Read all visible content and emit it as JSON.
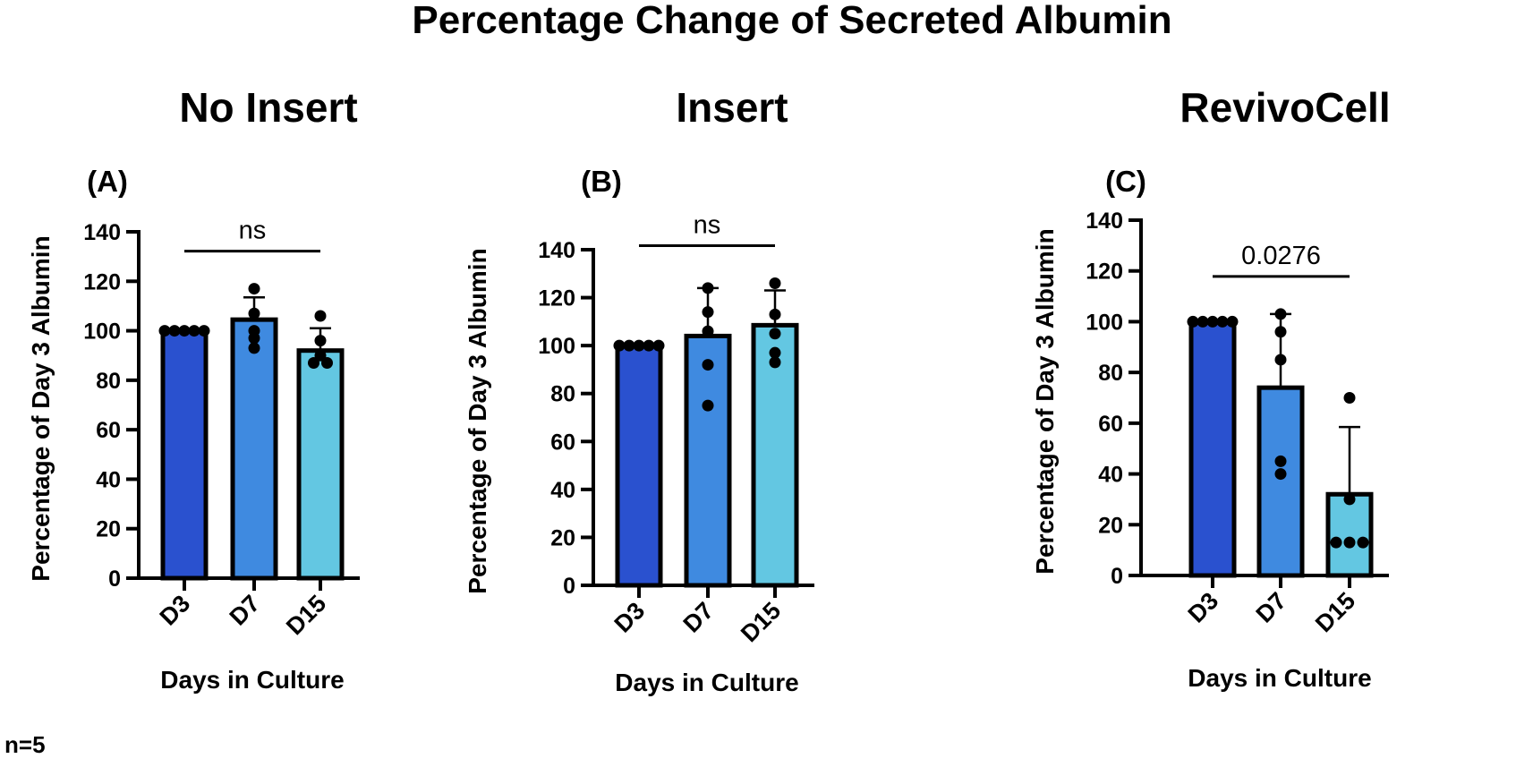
{
  "figure": {
    "title": "Percentage Change of Secreted Albumin",
    "footnote": "n=5"
  },
  "colors": {
    "D3": "#2a51cf",
    "D7": "#3f8ae0",
    "D15": "#63c7e2",
    "outline": "#000000"
  },
  "chart_data": [
    {
      "type": "bar",
      "panel_title": "No Insert",
      "panel_letter": "(A)",
      "categories": [
        "D3",
        "D7",
        "D15"
      ],
      "values": [
        100,
        104.5,
        92
      ],
      "error_upper": [
        100,
        113.5,
        101
      ],
      "points": [
        [
          100,
          100,
          100,
          100,
          100
        ],
        [
          117,
          107,
          100,
          97,
          93
        ],
        [
          106,
          96,
          90,
          87,
          87
        ]
      ],
      "ylabel": "Percentage of Day 3 Albumin",
      "xlabel": "Days in Culture",
      "ylim": [
        0,
        140
      ],
      "yticks": [
        0,
        20,
        40,
        60,
        80,
        100,
        120,
        140
      ],
      "significance": {
        "label": "ns",
        "from": "D3",
        "to": "D15"
      }
    },
    {
      "type": "bar",
      "panel_title": "Insert",
      "panel_letter": "(B)",
      "categories": [
        "D3",
        "D7",
        "D15"
      ],
      "values": [
        100,
        104,
        108.5
      ],
      "error_upper": [
        100,
        124,
        123
      ],
      "points": [
        [
          100,
          100,
          100,
          100,
          100
        ],
        [
          124,
          114,
          106,
          92,
          75
        ],
        [
          126,
          113,
          105,
          97,
          93
        ]
      ],
      "ylabel": "Percentage of Day 3 Albumin",
      "xlabel": "Days in Culture",
      "ylim": [
        0,
        140
      ],
      "yticks": [
        0,
        20,
        40,
        60,
        80,
        100,
        120,
        140
      ],
      "significance": {
        "label": "ns",
        "from": "D3",
        "to": "D15"
      }
    },
    {
      "type": "bar",
      "panel_title": "RevivoCell",
      "panel_letter": "(C)",
      "categories": [
        "D3",
        "D7",
        "D15"
      ],
      "values": [
        100,
        74,
        32
      ],
      "error_upper": [
        100,
        103,
        58.5
      ],
      "points": [
        [
          100,
          100,
          100,
          100,
          100
        ],
        [
          103,
          96,
          85,
          45,
          40
        ],
        [
          70,
          30,
          13,
          13,
          13
        ]
      ],
      "ylabel": "Percentage of Day 3 Albumin",
      "xlabel": "Days in Culture",
      "ylim": [
        0,
        140
      ],
      "yticks": [
        0,
        20,
        40,
        60,
        80,
        100,
        120,
        140
      ],
      "significance": {
        "label": "0.0276",
        "from": "D3",
        "to": "D15"
      }
    }
  ]
}
